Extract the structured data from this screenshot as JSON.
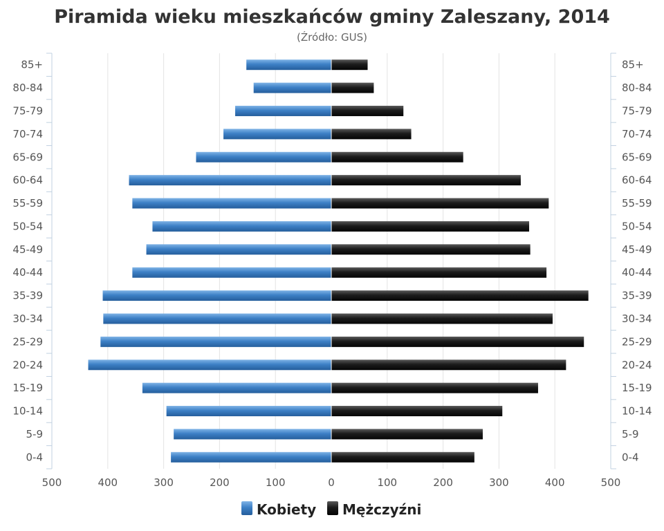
{
  "chart_data": {
    "type": "bar",
    "orientation": "horizontal",
    "title": "Piramida wieku mieszkańców gminy Zaleszany, 2014",
    "subtitle": "(Źródło: GUS)",
    "categories": [
      "85+",
      "80-84",
      "75-79",
      "70-74",
      "65-69",
      "60-64",
      "55-59",
      "50-54",
      "45-49",
      "40-44",
      "35-39",
      "30-34",
      "25-29",
      "20-24",
      "15-19",
      "10-14",
      "5-9",
      "0-4"
    ],
    "series": [
      {
        "name": "Kobiety",
        "color": "#3c7fc4",
        "side": "left",
        "values": [
          152,
          139,
          172,
          193,
          242,
          362,
          356,
          320,
          331,
          356,
          409,
          408,
          413,
          435,
          338,
          295,
          282,
          287
        ]
      },
      {
        "name": "Mężczyźni",
        "color": "#1a1a1a",
        "side": "right",
        "values": [
          65,
          76,
          129,
          143,
          236,
          339,
          389,
          354,
          356,
          385,
          460,
          396,
          452,
          420,
          370,
          306,
          271,
          256
        ]
      }
    ],
    "xlim": [
      -500,
      500
    ],
    "xticks": [
      "500",
      "400",
      "300",
      "200",
      "100",
      "0",
      "100",
      "200",
      "300",
      "400",
      "500"
    ],
    "grid": true,
    "legend": "bottom-center"
  }
}
